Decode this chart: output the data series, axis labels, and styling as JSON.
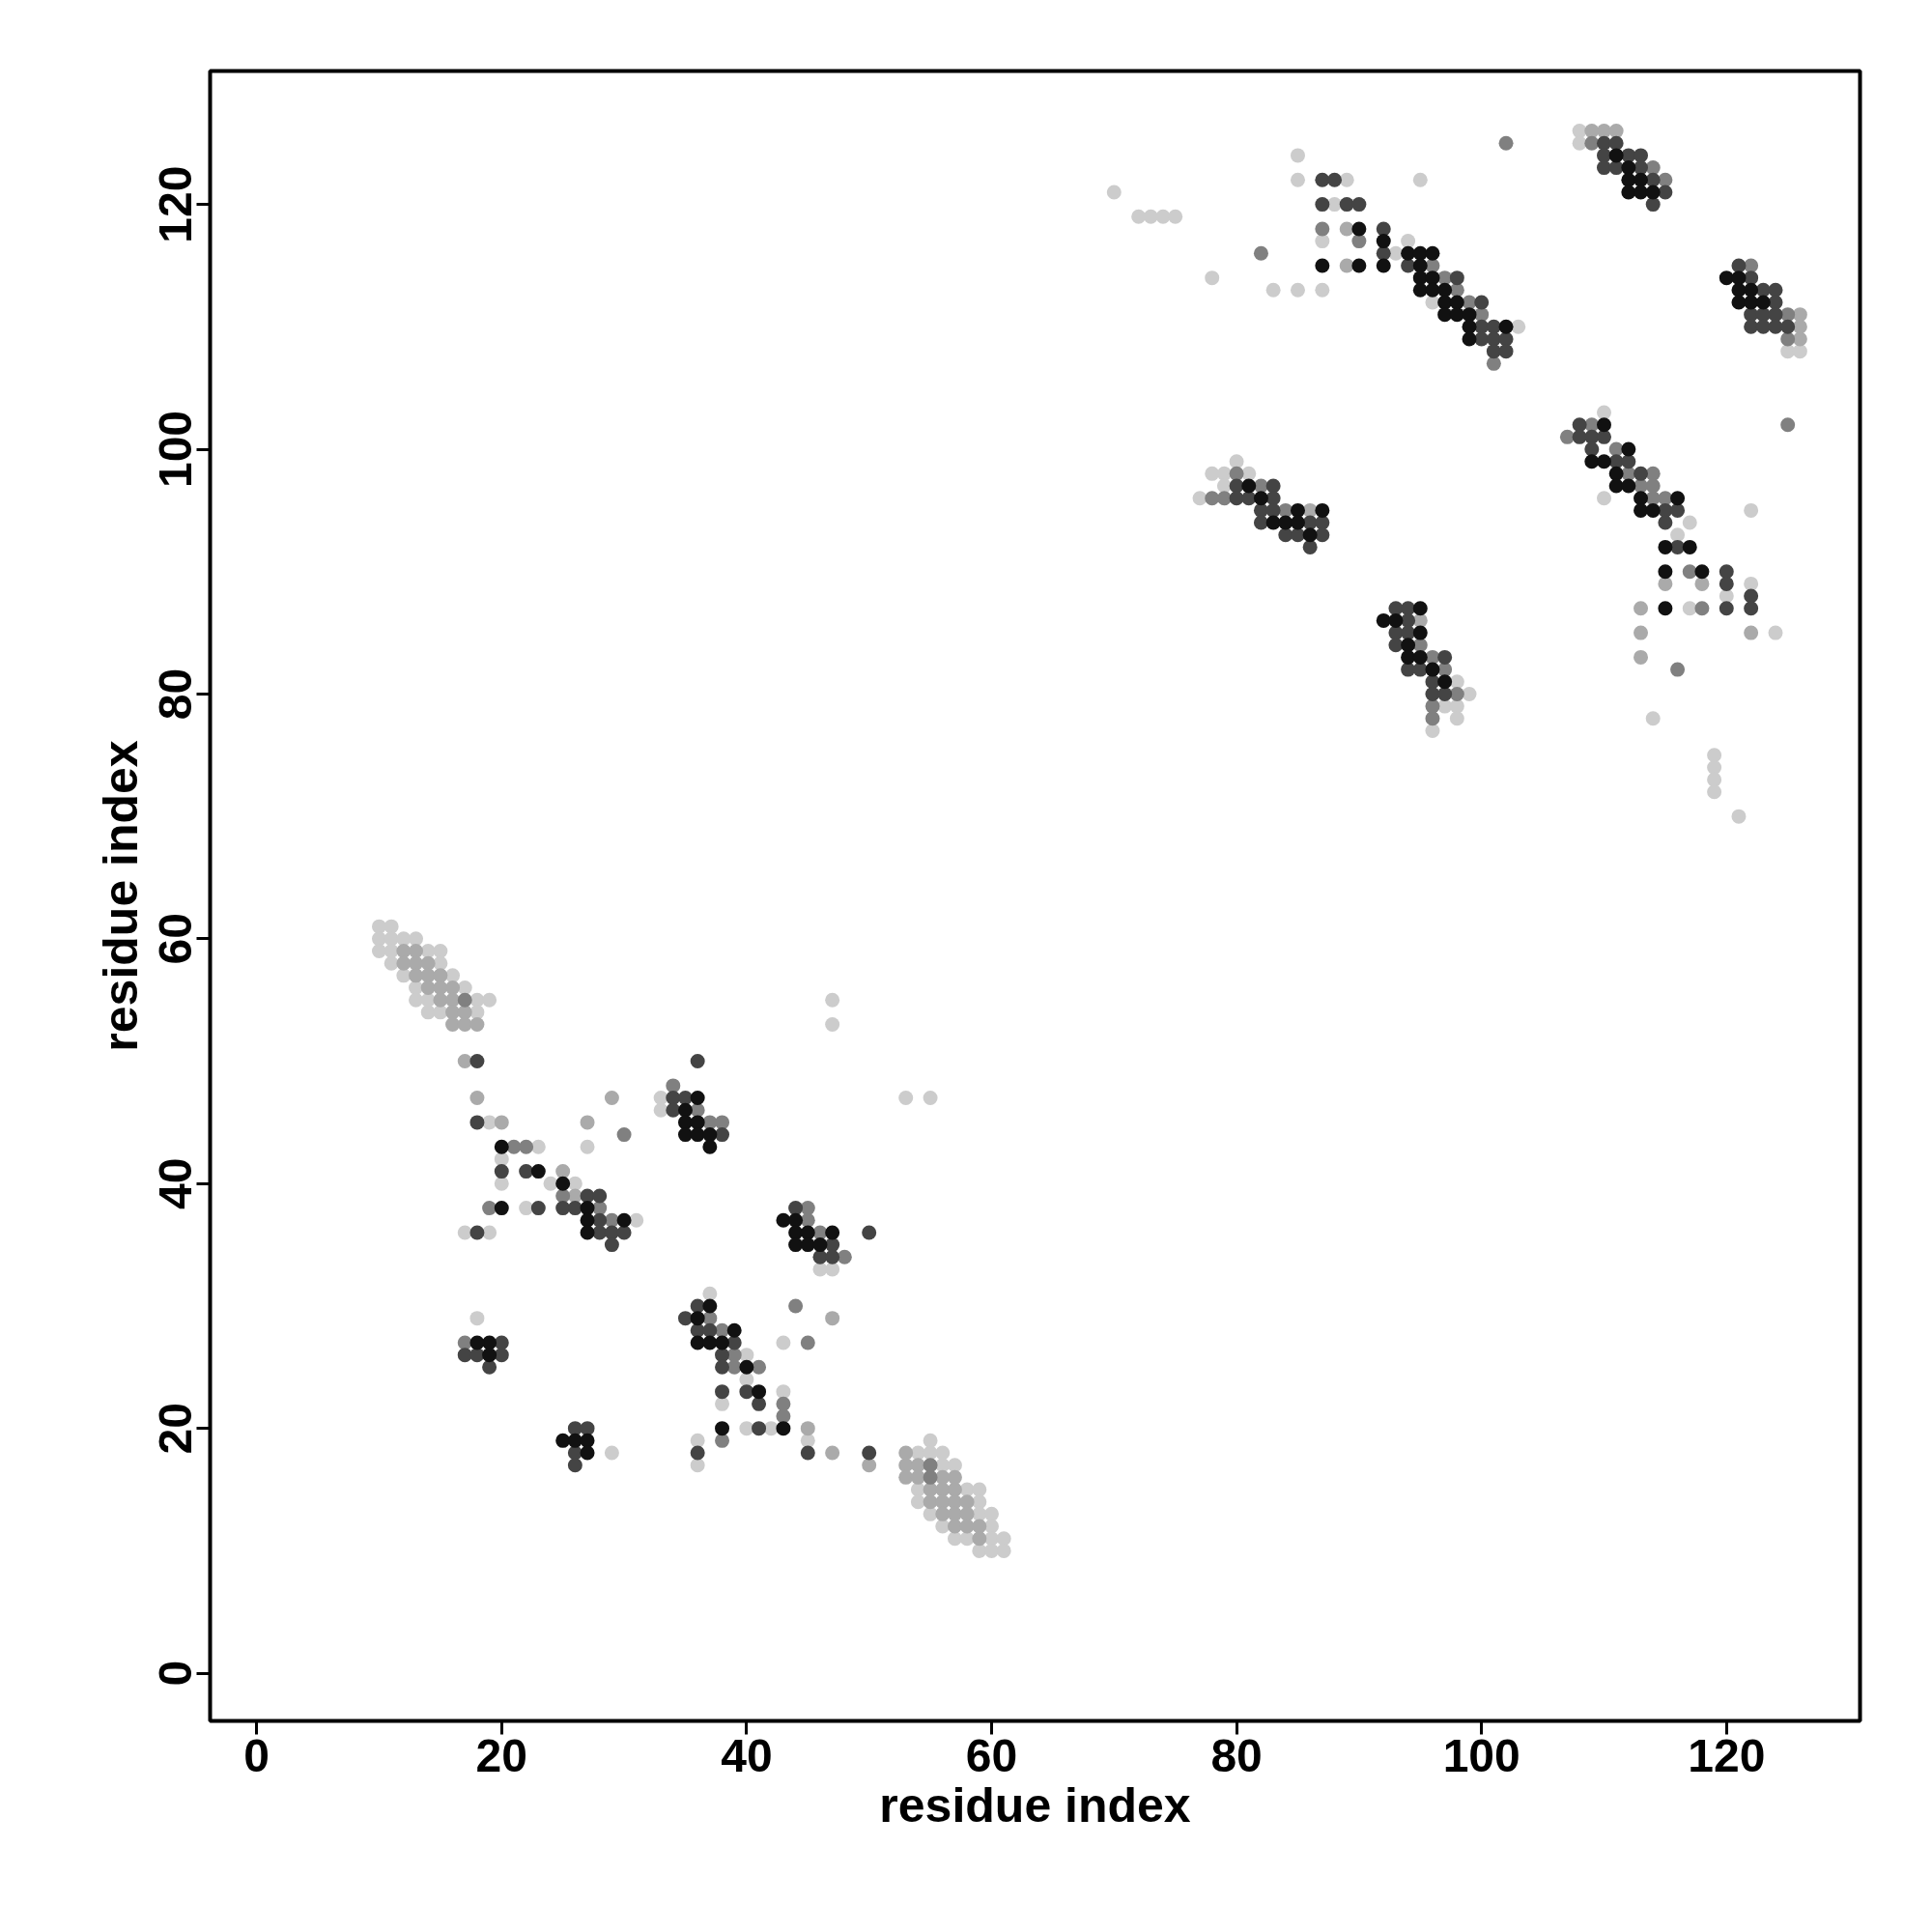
{
  "chart_data": {
    "type": "scatter",
    "xlabel": "residue index",
    "ylabel": "residue index",
    "xlim": [
      -3.8,
      130.9
    ],
    "ylim": [
      -3.9,
      130.9
    ],
    "xticks": [
      0,
      20,
      40,
      60,
      80,
      100,
      120
    ],
    "yticks": [
      0,
      20,
      40,
      60,
      80,
      100,
      120
    ],
    "marker": "circle",
    "series": [
      {
        "color": "#cccccc",
        "x": [
          10,
          11,
          10,
          11,
          12,
          13,
          10,
          11,
          14,
          15,
          11,
          15,
          12,
          16,
          13,
          17,
          13,
          14,
          18,
          19,
          14,
          15,
          18,
          55,
          54,
          55,
          56,
          56,
          57,
          54,
          58,
          59,
          54,
          59,
          55,
          59,
          60,
          56,
          60,
          57,
          58,
          60,
          61,
          59,
          60,
          61,
          18,
          19,
          23,
          20,
          20,
          24,
          26,
          22,
          31,
          17,
          19,
          29,
          27,
          47,
          47,
          53,
          55,
          33,
          33,
          46,
          47,
          37,
          40,
          40,
          38,
          43,
          40,
          42,
          36,
          45,
          36,
          43,
          70,
          72,
          73,
          74,
          75,
          78,
          83,
          85,
          87,
          85,
          85,
          89,
          95,
          88,
          87,
          94,
          93,
          96,
          103,
          80,
          78,
          79,
          81,
          79,
          77,
          98,
          99,
          97,
          98,
          98,
          96,
          108,
          108,
          125,
          126,
          110,
          110,
          116,
          117,
          122,
          117,
          120,
          122,
          124,
          114,
          119,
          119,
          119,
          119,
          121
        ],
        "values": [
          61,
          61,
          60,
          60,
          60,
          60,
          59,
          59,
          59,
          59,
          58,
          58,
          57,
          57,
          56,
          56,
          55,
          55,
          55,
          55,
          54,
          54,
          54,
          19,
          18,
          18,
          18,
          17,
          17,
          15,
          15,
          15,
          14,
          14,
          13,
          13,
          13,
          12,
          12,
          11,
          11,
          11,
          11,
          10,
          10,
          10,
          29,
          45,
          43,
          42,
          40,
          40,
          40,
          38,
          37,
          36,
          36,
          18,
          43,
          55,
          53,
          47,
          47,
          47,
          46,
          33,
          33,
          31,
          26,
          24,
          22,
          23,
          20,
          20,
          19,
          19,
          17,
          27,
          121,
          119,
          119,
          119,
          119,
          114,
          113,
          113,
          113,
          124,
          122,
          122,
          122,
          120,
          117,
          117,
          116,
          112,
          110,
          99,
          98,
          98,
          98,
          97,
          96,
          81,
          80,
          79,
          79,
          78,
          77,
          126,
          125,
          108,
          108,
          103,
          96,
          93,
          94,
          95,
          87,
          88,
          89,
          85,
          78,
          75,
          74,
          73,
          72,
          70
        ]
      },
      {
        "color": "#aaaaaa",
        "x": [
          12,
          13,
          12,
          13,
          14,
          13,
          14,
          15,
          14,
          15,
          16,
          15,
          16,
          16,
          17,
          16,
          17,
          18,
          53,
          53,
          54,
          53,
          54,
          56,
          57,
          55,
          56,
          57,
          55,
          56,
          57,
          58,
          56,
          57,
          58,
          57,
          58,
          59,
          59,
          17,
          18,
          20,
          29,
          27,
          25,
          26,
          45,
          47,
          50,
          47,
          89,
          89,
          86,
          95,
          109,
          110,
          111,
          126,
          126,
          126,
          115,
          118,
          113,
          113,
          122,
          113
        ],
        "values": [
          59,
          59,
          58,
          58,
          58,
          57,
          57,
          57,
          56,
          56,
          56,
          55,
          55,
          54,
          54,
          53,
          53,
          53,
          18,
          17,
          17,
          16,
          16,
          16,
          16,
          15,
          15,
          15,
          14,
          14,
          14,
          14,
          13,
          13,
          13,
          12,
          12,
          12,
          11,
          50,
          47,
          45,
          47,
          45,
          41,
          39,
          20,
          18,
          17,
          29,
          118,
          115,
          95,
          86,
          126,
          126,
          126,
          111,
          110,
          109,
          89,
          89,
          87,
          85,
          85,
          83
        ]
      },
      {
        "color": "#808080",
        "x": [
          17,
          55,
          55,
          17,
          19,
          21,
          22,
          25,
          28,
          29,
          30,
          34,
          36,
          37,
          38,
          45,
          45,
          46,
          48,
          37,
          38,
          39,
          39,
          41,
          43,
          43,
          44,
          45,
          38,
          82,
          87,
          90,
          96,
          97,
          98,
          99,
          100,
          101,
          102,
          80,
          82,
          78,
          79,
          84,
          95,
          96,
          97,
          98,
          96,
          96,
          109,
          114,
          115,
          122,
          125,
          125,
          125,
          109,
          107,
          111,
          112,
          114,
          113,
          114,
          114,
          115,
          117,
          118,
          116
        ],
        "values": [
          55,
          17,
          16,
          27,
          38,
          43,
          43,
          39,
          38,
          37,
          44,
          48,
          46,
          45,
          45,
          38,
          37,
          36,
          34,
          29,
          28,
          26,
          25,
          25,
          22,
          21,
          30,
          27,
          19,
          116,
          118,
          117,
          115,
          114,
          113,
          112,
          111,
          107,
          125,
          98,
          97,
          96,
          96,
          95,
          84,
          83,
          82,
          80,
          79,
          78,
          125,
          123,
          122,
          115,
          111,
          109,
          102,
          102,
          101,
          100,
          98,
          98,
          97,
          97,
          96,
          96,
          90,
          87,
          82
        ]
      },
      {
        "color": "#444444",
        "x": [
          18,
          18,
          20,
          22,
          23,
          25,
          26,
          27,
          28,
          28,
          28,
          29,
          30,
          29,
          18,
          20,
          17,
          18,
          20,
          19,
          26,
          27,
          26,
          26,
          36,
          34,
          35,
          34,
          38,
          44,
          47,
          46,
          47,
          50,
          36,
          35,
          36,
          37,
          39,
          38,
          38,
          38,
          40,
          41,
          41,
          36,
          45,
          50,
          87,
          88,
          87,
          89,
          90,
          92,
          92,
          94,
          98,
          100,
          100,
          101,
          100,
          101,
          102,
          101,
          102,
          80,
          83,
          80,
          81,
          83,
          82,
          83,
          82,
          86,
          87,
          84,
          85,
          87,
          86,
          93,
          94,
          94,
          93,
          94,
          93,
          97,
          94,
          95,
          96,
          96,
          97,
          110,
          111,
          110,
          112,
          113,
          110,
          111,
          113,
          114,
          115,
          114,
          121,
          122,
          123,
          124,
          124,
          122,
          123,
          124,
          122,
          123,
          124,
          125,
          108,
          108,
          109,
          110,
          109,
          111,
          112,
          113,
          115,
          116,
          115,
          116,
          120,
          120,
          122,
          120,
          122
        ],
        "values": [
          50,
          45,
          41,
          41,
          38,
          38,
          38,
          39,
          39,
          37,
          36,
          36,
          36,
          35,
          36,
          27,
          26,
          26,
          26,
          25,
          20,
          20,
          18,
          17,
          50,
          47,
          47,
          46,
          44,
          38,
          35,
          34,
          34,
          36,
          30,
          29,
          28,
          28,
          27,
          26,
          25,
          23,
          23,
          22,
          20,
          18,
          18,
          18,
          122,
          122,
          120,
          120,
          120,
          118,
          116,
          115,
          114,
          112,
          110,
          110,
          109,
          109,
          109,
          108,
          108,
          97,
          97,
          96,
          96,
          96,
          95,
          95,
          94,
          94,
          94,
          93,
          93,
          93,
          92,
          87,
          87,
          86,
          85,
          85,
          84,
          83,
          82,
          82,
          81,
          80,
          80,
          125,
          125,
          124,
          124,
          124,
          123,
          123,
          123,
          122,
          121,
          120,
          115,
          114,
          113,
          113,
          112,
          111,
          111,
          111,
          110,
          110,
          110,
          110,
          102,
          101,
          101,
          101,
          100,
          99,
          99,
          98,
          95,
          95,
          94,
          92,
          90,
          89,
          88,
          87,
          87
        ]
      },
      {
        "color": "#111111",
        "x": [
          20,
          23,
          25,
          20,
          27,
          27,
          30,
          27,
          19,
          18,
          19,
          25,
          26,
          27,
          27,
          36,
          35,
          35,
          36,
          35,
          36,
          37,
          37,
          43,
          44,
          44,
          45,
          47,
          44,
          45,
          46,
          37,
          36,
          39,
          36,
          37,
          38,
          40,
          41,
          38,
          43,
          90,
          92,
          94,
          95,
          96,
          87,
          90,
          92,
          95,
          95,
          96,
          95,
          96,
          97,
          97,
          98,
          97,
          98,
          99,
          99,
          102,
          99,
          81,
          82,
          85,
          87,
          83,
          84,
          85,
          86,
          95,
          92,
          93,
          95,
          94,
          94,
          95,
          96,
          97,
          111,
          112,
          112,
          113,
          112,
          113,
          114,
          120,
          121,
          121,
          122,
          121,
          122,
          123,
          110,
          109,
          110,
          112,
          111,
          111,
          112,
          113,
          116,
          113,
          114,
          115,
          117,
          115,
          118,
          115
        ],
        "values": [
          43,
          41,
          40,
          38,
          38,
          37,
          37,
          36,
          27,
          27,
          26,
          19,
          19,
          19,
          18,
          47,
          46,
          45,
          45,
          44,
          44,
          44,
          43,
          37,
          37,
          36,
          36,
          36,
          35,
          35,
          35,
          30,
          29,
          28,
          27,
          27,
          27,
          25,
          23,
          20,
          20,
          118,
          117,
          116,
          116,
          116,
          115,
          115,
          115,
          115,
          114,
          114,
          113,
          113,
          113,
          112,
          112,
          111,
          111,
          111,
          110,
          110,
          109,
          97,
          96,
          95,
          95,
          94,
          94,
          94,
          93,
          87,
          86,
          86,
          85,
          84,
          83,
          83,
          82,
          81,
          124,
          123,
          122,
          122,
          121,
          121,
          121,
          114,
          114,
          113,
          113,
          112,
          112,
          112,
          102,
          99,
          99,
          100,
          98,
          97,
          97,
          96,
          96,
          95,
          95,
          92,
          92,
          90,
          90,
          87
        ]
      }
    ]
  }
}
